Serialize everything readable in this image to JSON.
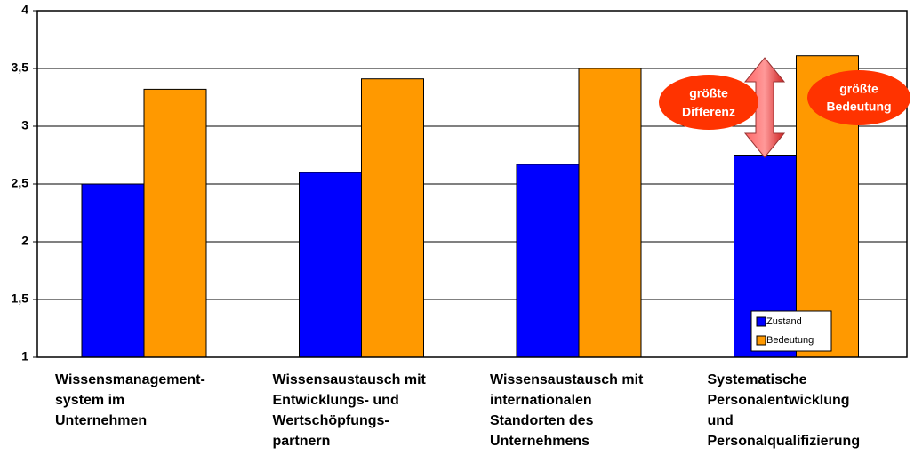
{
  "chart_data": {
    "type": "bar",
    "categories": [
      [
        "Wissensmanagement-",
        "system im",
        "Unternehmen"
      ],
      [
        "Wissensaustausch mit",
        "Entwicklungs- und",
        "Wertschöpfungs-",
        "partnern"
      ],
      [
        "Wissensaustausch mit",
        "internationalen",
        "Standorten des",
        "Unternehmens"
      ],
      [
        "Systematische",
        "Personalentwicklung",
        "und",
        "Personalqualifizierung"
      ]
    ],
    "series": [
      {
        "name": "Zustand",
        "color": "#0000ff",
        "values": [
          2.5,
          2.6,
          2.67,
          2.75
        ]
      },
      {
        "name": "Bedeutung",
        "color": "#ff9900",
        "values": [
          3.32,
          3.41,
          3.5,
          3.61
        ]
      }
    ],
    "ylim": [
      1,
      4
    ],
    "yticks": [
      1,
      {
        "value": 1.5,
        "label": "1,5"
      },
      2,
      {
        "value": 2.5,
        "label": "2,5"
      },
      3,
      {
        "value": 3.5,
        "label": "3,5"
      },
      4
    ],
    "grid": true,
    "legend": "lower right",
    "annotations": [
      [
        "größte",
        "Differenz"
      ],
      [
        "größte",
        "Bedeutung"
      ]
    ]
  }
}
